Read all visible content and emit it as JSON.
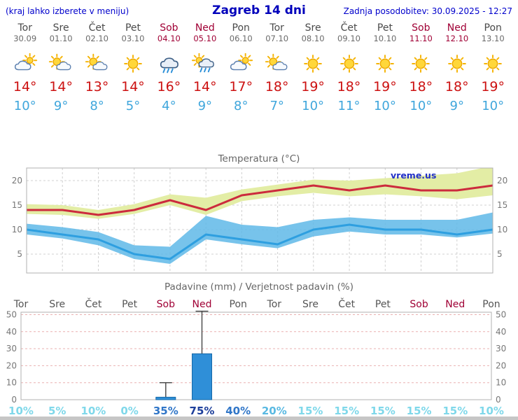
{
  "header": {
    "menu_hint": "(kraj lahko izberete v meniju)",
    "title": "Zagreb 14 dni",
    "last_update": "Zadnja posodobitev: 30.09.2025 - 12:27"
  },
  "days": [
    {
      "name": "Tor",
      "date": "30.09",
      "highlight": false,
      "icon": "cloud-sun",
      "tmax": "14°",
      "tmin": "10°"
    },
    {
      "name": "Sre",
      "date": "01.10",
      "highlight": false,
      "icon": "sun-cloud",
      "tmax": "14°",
      "tmin": "9°"
    },
    {
      "name": "Čet",
      "date": "02.10",
      "highlight": false,
      "icon": "sun-cloud",
      "tmax": "13°",
      "tmin": "8°"
    },
    {
      "name": "Pet",
      "date": "03.10",
      "highlight": false,
      "icon": "sun",
      "tmax": "14°",
      "tmin": "5°"
    },
    {
      "name": "Sob",
      "date": "04.10",
      "highlight": true,
      "icon": "rain",
      "tmax": "16°",
      "tmin": "4°"
    },
    {
      "name": "Ned",
      "date": "05.10",
      "highlight": true,
      "icon": "rain-sun",
      "tmax": "14°",
      "tmin": "9°"
    },
    {
      "name": "Pon",
      "date": "06.10",
      "highlight": false,
      "icon": "cloud-sun",
      "tmax": "17°",
      "tmin": "8°"
    },
    {
      "name": "Tor",
      "date": "07.10",
      "highlight": false,
      "icon": "sun-cloud",
      "tmax": "18°",
      "tmin": "7°"
    },
    {
      "name": "Sre",
      "date": "08.10",
      "highlight": false,
      "icon": "sun",
      "tmax": "19°",
      "tmin": "10°"
    },
    {
      "name": "Čet",
      "date": "09.10",
      "highlight": false,
      "icon": "sun",
      "tmax": "18°",
      "tmin": "11°"
    },
    {
      "name": "Pet",
      "date": "10.10",
      "highlight": false,
      "icon": "sun",
      "tmax": "19°",
      "tmin": "10°"
    },
    {
      "name": "Sob",
      "date": "11.10",
      "highlight": true,
      "icon": "sun",
      "tmax": "18°",
      "tmin": "10°"
    },
    {
      "name": "Ned",
      "date": "12.10",
      "highlight": true,
      "icon": "sun",
      "tmax": "18°",
      "tmin": "9°"
    },
    {
      "name": "Pon",
      "date": "13.10",
      "highlight": false,
      "icon": "sun",
      "tmax": "19°",
      "tmin": "10°"
    }
  ],
  "chart_data": [
    {
      "type": "line",
      "title": "Temperatura (°C)",
      "watermark": "vreme.us",
      "x_labels": [
        "Tor",
        "Sre",
        "Čet",
        "Pet",
        "Sob",
        "Ned",
        "Pon",
        "Tor",
        "Sre",
        "Čet",
        "Pet",
        "Sob",
        "Ned",
        "Pon"
      ],
      "y_ticks": [
        5,
        10,
        15,
        20
      ],
      "ylim": [
        1,
        23
      ],
      "grid": true,
      "series": [
        {
          "name": "max_temp",
          "color": "#cc2b3d",
          "values": [
            14,
            14,
            13,
            14,
            16,
            14,
            17,
            18,
            19,
            18,
            19,
            18,
            18,
            19
          ]
        },
        {
          "name": "min_temp",
          "color": "#2e9fe0",
          "values": [
            10,
            9,
            8,
            5,
            4,
            9,
            8,
            7,
            10,
            11,
            10,
            10,
            9,
            10
          ]
        }
      ],
      "bands": [
        {
          "name": "max_range",
          "color": "#e3eda5",
          "upper": [
            15.2,
            15,
            14,
            15.2,
            17.2,
            16.5,
            18.2,
            19.2,
            20.2,
            20,
            20.5,
            21,
            21.5,
            23
          ],
          "lower": [
            13.2,
            13,
            12.2,
            13.2,
            15,
            13,
            15.8,
            16.8,
            17.5,
            16.8,
            17.2,
            16.8,
            16.2,
            17
          ]
        },
        {
          "name": "min_range",
          "color": "#5fb8e8",
          "upper": [
            11.2,
            10.5,
            9.5,
            6.8,
            6.5,
            12.8,
            11,
            10.5,
            12,
            12.5,
            12,
            12,
            12,
            13.5
          ],
          "lower": [
            9,
            8.2,
            6.8,
            4,
            3,
            8,
            7,
            6.2,
            8.6,
            9.6,
            9,
            9,
            8.4,
            9.2
          ]
        }
      ]
    },
    {
      "type": "bar",
      "title": "Padavine (mm) / Verjetnost padavin (%)",
      "x_labels": [
        "Tor",
        "Sre",
        "Čet",
        "Pet",
        "Sob",
        "Ned",
        "Pon",
        "Tor",
        "Sre",
        "Čet",
        "Pet",
        "Sob",
        "Ned",
        "Pon"
      ],
      "x_highlight": [
        false,
        false,
        false,
        false,
        true,
        true,
        false,
        false,
        false,
        false,
        false,
        true,
        true,
        false
      ],
      "y_ticks": [
        0,
        10,
        20,
        30,
        40,
        50
      ],
      "ylim": [
        0,
        52
      ],
      "bar_color": "#2f8fd8",
      "values": [
        0,
        0,
        0,
        0,
        1.5,
        27,
        0,
        0,
        0,
        0,
        0,
        0,
        0,
        0
      ],
      "whisker_max": [
        0,
        0,
        0,
        0,
        10,
        52,
        0,
        0,
        0,
        0,
        0,
        0,
        0,
        0
      ],
      "whisker_min": [
        0,
        0,
        0,
        0,
        0,
        0,
        0,
        0,
        0,
        0,
        0,
        0,
        0,
        0
      ],
      "probabilities": [
        {
          "label": "10%",
          "color": "#7fd8ea"
        },
        {
          "label": "5%",
          "color": "#7fd8ea"
        },
        {
          "label": "10%",
          "color": "#7fd8ea"
        },
        {
          "label": "0%",
          "color": "#7fd8ea"
        },
        {
          "label": "35%",
          "color": "#3076c8"
        },
        {
          "label": "75%",
          "color": "#1d3f9b"
        },
        {
          "label": "40%",
          "color": "#3076c8"
        },
        {
          "label": "20%",
          "color": "#59b9e2"
        },
        {
          "label": "15%",
          "color": "#7fd8ea"
        },
        {
          "label": "15%",
          "color": "#7fd8ea"
        },
        {
          "label": "15%",
          "color": "#7fd8ea"
        },
        {
          "label": "15%",
          "color": "#7fd8ea"
        },
        {
          "label": "15%",
          "color": "#7fd8ea"
        },
        {
          "label": "10%",
          "color": "#7fd8ea"
        }
      ]
    }
  ]
}
